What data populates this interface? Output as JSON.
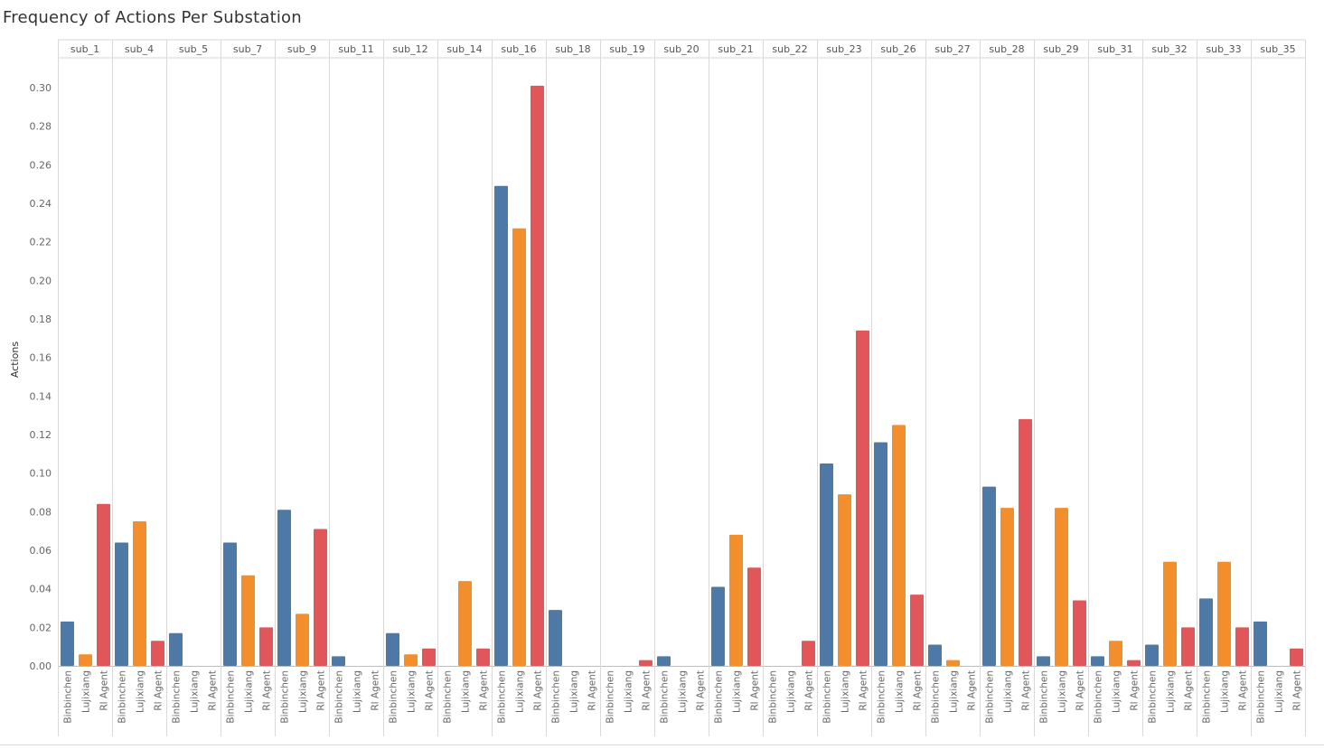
{
  "chart_data": {
    "type": "bar",
    "title": "Frequency of Actions Per Substation",
    "ylabel": "Actions",
    "xlabel": "",
    "ylim": [
      0,
      0.31
    ],
    "yticks": [
      0.0,
      0.02,
      0.04,
      0.06,
      0.08,
      0.1,
      0.12,
      0.14,
      0.16,
      0.18,
      0.2,
      0.22,
      0.24,
      0.26,
      0.28,
      0.3
    ],
    "grid": false,
    "agents": [
      "Binbinchen",
      "Lujixiang",
      "Rl Agent"
    ],
    "colors": {
      "Binbinchen": "#4e79a7",
      "Lujixiang": "#f28e2b",
      "Rl Agent": "#e15759"
    },
    "categories": [
      "sub_1",
      "sub_4",
      "sub_5",
      "sub_7",
      "sub_9",
      "sub_11",
      "sub_12",
      "sub_14",
      "sub_16",
      "sub_18",
      "sub_19",
      "sub_20",
      "sub_21",
      "sub_22",
      "sub_23",
      "sub_26",
      "sub_27",
      "sub_28",
      "sub_29",
      "sub_31",
      "sub_32",
      "sub_33",
      "sub_35"
    ],
    "series": [
      {
        "name": "Binbinchen",
        "values": [
          0.023,
          0.064,
          0.017,
          0.064,
          0.081,
          0.005,
          0.017,
          0.0,
          0.249,
          0.029,
          0.0,
          0.005,
          0.041,
          0.0,
          0.105,
          0.116,
          0.011,
          0.093,
          0.005,
          0.005,
          0.011,
          0.035,
          0.023
        ]
      },
      {
        "name": "Lujixiang",
        "values": [
          0.006,
          0.075,
          0.0,
          0.047,
          0.027,
          0.0,
          0.006,
          0.044,
          0.227,
          0.0,
          0.0,
          0.0,
          0.068,
          0.0,
          0.089,
          0.125,
          0.003,
          0.082,
          0.082,
          0.013,
          0.054,
          0.054,
          0.0
        ]
      },
      {
        "name": "Rl Agent",
        "values": [
          0.084,
          0.013,
          0.0,
          0.02,
          0.071,
          0.0,
          0.009,
          0.009,
          0.301,
          0.0,
          0.003,
          0.0,
          0.051,
          0.013,
          0.174,
          0.037,
          0.0,
          0.128,
          0.034,
          0.003,
          0.02,
          0.02,
          0.009
        ]
      }
    ]
  }
}
